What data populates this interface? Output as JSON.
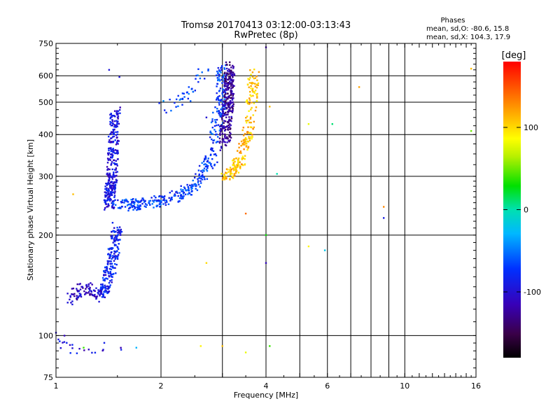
{
  "chart_data": {
    "type": "scatter",
    "title": "Tromsø 20170413 03:12:00-03:13:43",
    "subtitle": "RwPretec (8p)",
    "xlabel": "Frequency [MHz]",
    "ylabel": "Stationary phase Virtual Height [km]",
    "x_scale": "log",
    "y_scale": "log",
    "xlim": [
      1,
      16
    ],
    "ylim": [
      75,
      750
    ],
    "x_ticks": [
      1,
      2,
      4,
      6,
      10,
      16
    ],
    "x_tick_labels": [
      "1",
      "2",
      "4",
      "6",
      "10",
      "16"
    ],
    "x_gridlines": [
      1,
      2,
      3,
      4,
      5,
      6,
      7,
      8,
      9,
      10,
      16
    ],
    "y_ticks": [
      75,
      100,
      200,
      300,
      400,
      500,
      600,
      750
    ],
    "y_tick_labels": [
      "75",
      "100",
      "200",
      "300",
      "400",
      "500",
      "600",
      "750"
    ],
    "y_gridlines": [
      100,
      200,
      300,
      400,
      500,
      600
    ],
    "grid": true,
    "info": {
      "heading": "Phases",
      "line1": "mean, sd,O: -80.6, 15.8",
      "line2": "mean, sd,X: 104.3, 17.9"
    },
    "colorbar": {
      "label": "[deg]",
      "range": [
        -180,
        180
      ],
      "tick_values": [
        100,
        0,
        -100
      ],
      "tick_labels": [
        "100",
        "0",
        "-100"
      ]
    },
    "series": [
      {
        "name": "O",
        "mean_phase": -80.6,
        "sd_phase": 15.8,
        "segments": [
          {
            "f": [
              1.42,
              1.45,
              1.48
            ],
            "h": [
              245,
              300,
              470
            ],
            "phase": -95,
            "n": 320
          },
          {
            "f": [
              1.5,
              1.75,
              2.1,
              2.5,
              2.8,
              2.95,
              3.0
            ],
            "h": [
              245,
              248,
              255,
              280,
              340,
              480,
              640
            ],
            "phase": -70,
            "n": 420
          },
          {
            "f": [
              2.0,
              2.4,
              2.7
            ],
            "h": [
              480,
              530,
              630
            ],
            "phase": -65,
            "n": 40
          },
          {
            "f": [
              1.35,
              1.45,
              1.5
            ],
            "h": [
              130,
              165,
              210
            ],
            "phase": -85,
            "n": 220
          },
          {
            "f": [
              1.1,
              1.2,
              1.3
            ],
            "h": [
              128,
              140,
              133
            ],
            "phase": -105,
            "n": 80
          },
          {
            "f": [
              3.05,
              3.12,
              3.16
            ],
            "h": [
              370,
              500,
              640
            ],
            "phase": -125,
            "n": 280
          },
          {
            "f": [
              1.0,
              1.1,
              1.4,
              1.6
            ],
            "h": [
              98,
              92,
              92,
              92
            ],
            "phase": -100,
            "n": 25
          }
        ]
      },
      {
        "name": "X",
        "mean_phase": 104.3,
        "sd_phase": 17.9,
        "segments": [
          {
            "f": [
              3.05,
              3.35,
              3.6,
              3.7
            ],
            "h": [
              300,
              330,
              420,
              610
            ],
            "phase": 110,
            "n": 230
          }
        ]
      }
    ],
    "scattered_points": [
      {
        "f": 1.42,
        "h": 625,
        "phase": -95
      },
      {
        "f": 1.52,
        "h": 595,
        "phase": -95
      },
      {
        "f": 2.7,
        "h": 450,
        "phase": -100
      },
      {
        "f": 4.0,
        "h": 730,
        "phase": -120
      },
      {
        "f": 4.0,
        "h": 165,
        "phase": -110
      },
      {
        "f": 7.4,
        "h": 555,
        "phase": 120
      },
      {
        "f": 8.7,
        "h": 243,
        "phase": 130
      },
      {
        "f": 8.7,
        "h": 225,
        "phase": -90
      },
      {
        "f": 15.5,
        "h": 630,
        "phase": 110
      },
      {
        "f": 15.5,
        "h": 410,
        "phase": 50
      },
      {
        "f": 5.3,
        "h": 430,
        "phase": 80
      },
      {
        "f": 6.2,
        "h": 430,
        "phase": 10
      },
      {
        "f": 4.3,
        "h": 305,
        "phase": 0
      },
      {
        "f": 4.0,
        "h": 200,
        "phase": 30
      },
      {
        "f": 5.3,
        "h": 185,
        "phase": 90
      },
      {
        "f": 5.9,
        "h": 180,
        "phase": -20
      },
      {
        "f": 3.5,
        "h": 232,
        "phase": 140
      },
      {
        "f": 2.7,
        "h": 165,
        "phase": 100
      },
      {
        "f": 1.12,
        "h": 265,
        "phase": 110
      },
      {
        "f": 1.2,
        "h": 92,
        "phase": 40
      },
      {
        "f": 1.7,
        "h": 92,
        "phase": -30
      },
      {
        "f": 2.6,
        "h": 93,
        "phase": 90
      },
      {
        "f": 3.0,
        "h": 93,
        "phase": 110
      },
      {
        "f": 3.5,
        "h": 89,
        "phase": 80
      },
      {
        "f": 4.1,
        "h": 93,
        "phase": 40
      },
      {
        "f": 1.0,
        "h": 102,
        "phase": -100
      },
      {
        "f": 4.1,
        "h": 485,
        "phase": 110
      }
    ]
  }
}
